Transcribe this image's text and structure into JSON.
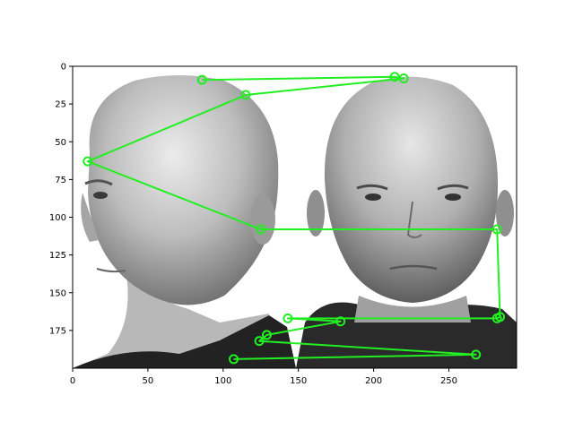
{
  "chart_data": {
    "type": "scatter",
    "title": "",
    "xlabel": "",
    "ylabel": "",
    "xlim": [
      0,
      295
    ],
    "ylim": [
      200,
      0
    ],
    "y_inverted": true,
    "x_ticks": [
      0,
      50,
      100,
      150,
      200,
      250
    ],
    "y_ticks": [
      0,
      25,
      50,
      75,
      100,
      125,
      150,
      175
    ],
    "grid": false,
    "legend": "none",
    "series": [
      {
        "style": "line with open circle markers",
        "color": "#22ee22",
        "points": [
          [
            86,
            9
          ],
          [
            214,
            7
          ],
          [
            220,
            8
          ],
          [
            115,
            19
          ],
          [
            10,
            63
          ],
          [
            125,
            108
          ],
          [
            282,
            108
          ],
          [
            284,
            166
          ],
          [
            282,
            167
          ],
          [
            143,
            167
          ],
          [
            178,
            169
          ],
          [
            129,
            178
          ],
          [
            124,
            182
          ],
          [
            268,
            191
          ],
          [
            107,
            194
          ]
        ]
      }
    ],
    "background_image": "two-bald-men-portrait-grayscale"
  },
  "colors": {
    "series": "#22ee22",
    "axis": "#000000",
    "background": "#ffffff"
  }
}
